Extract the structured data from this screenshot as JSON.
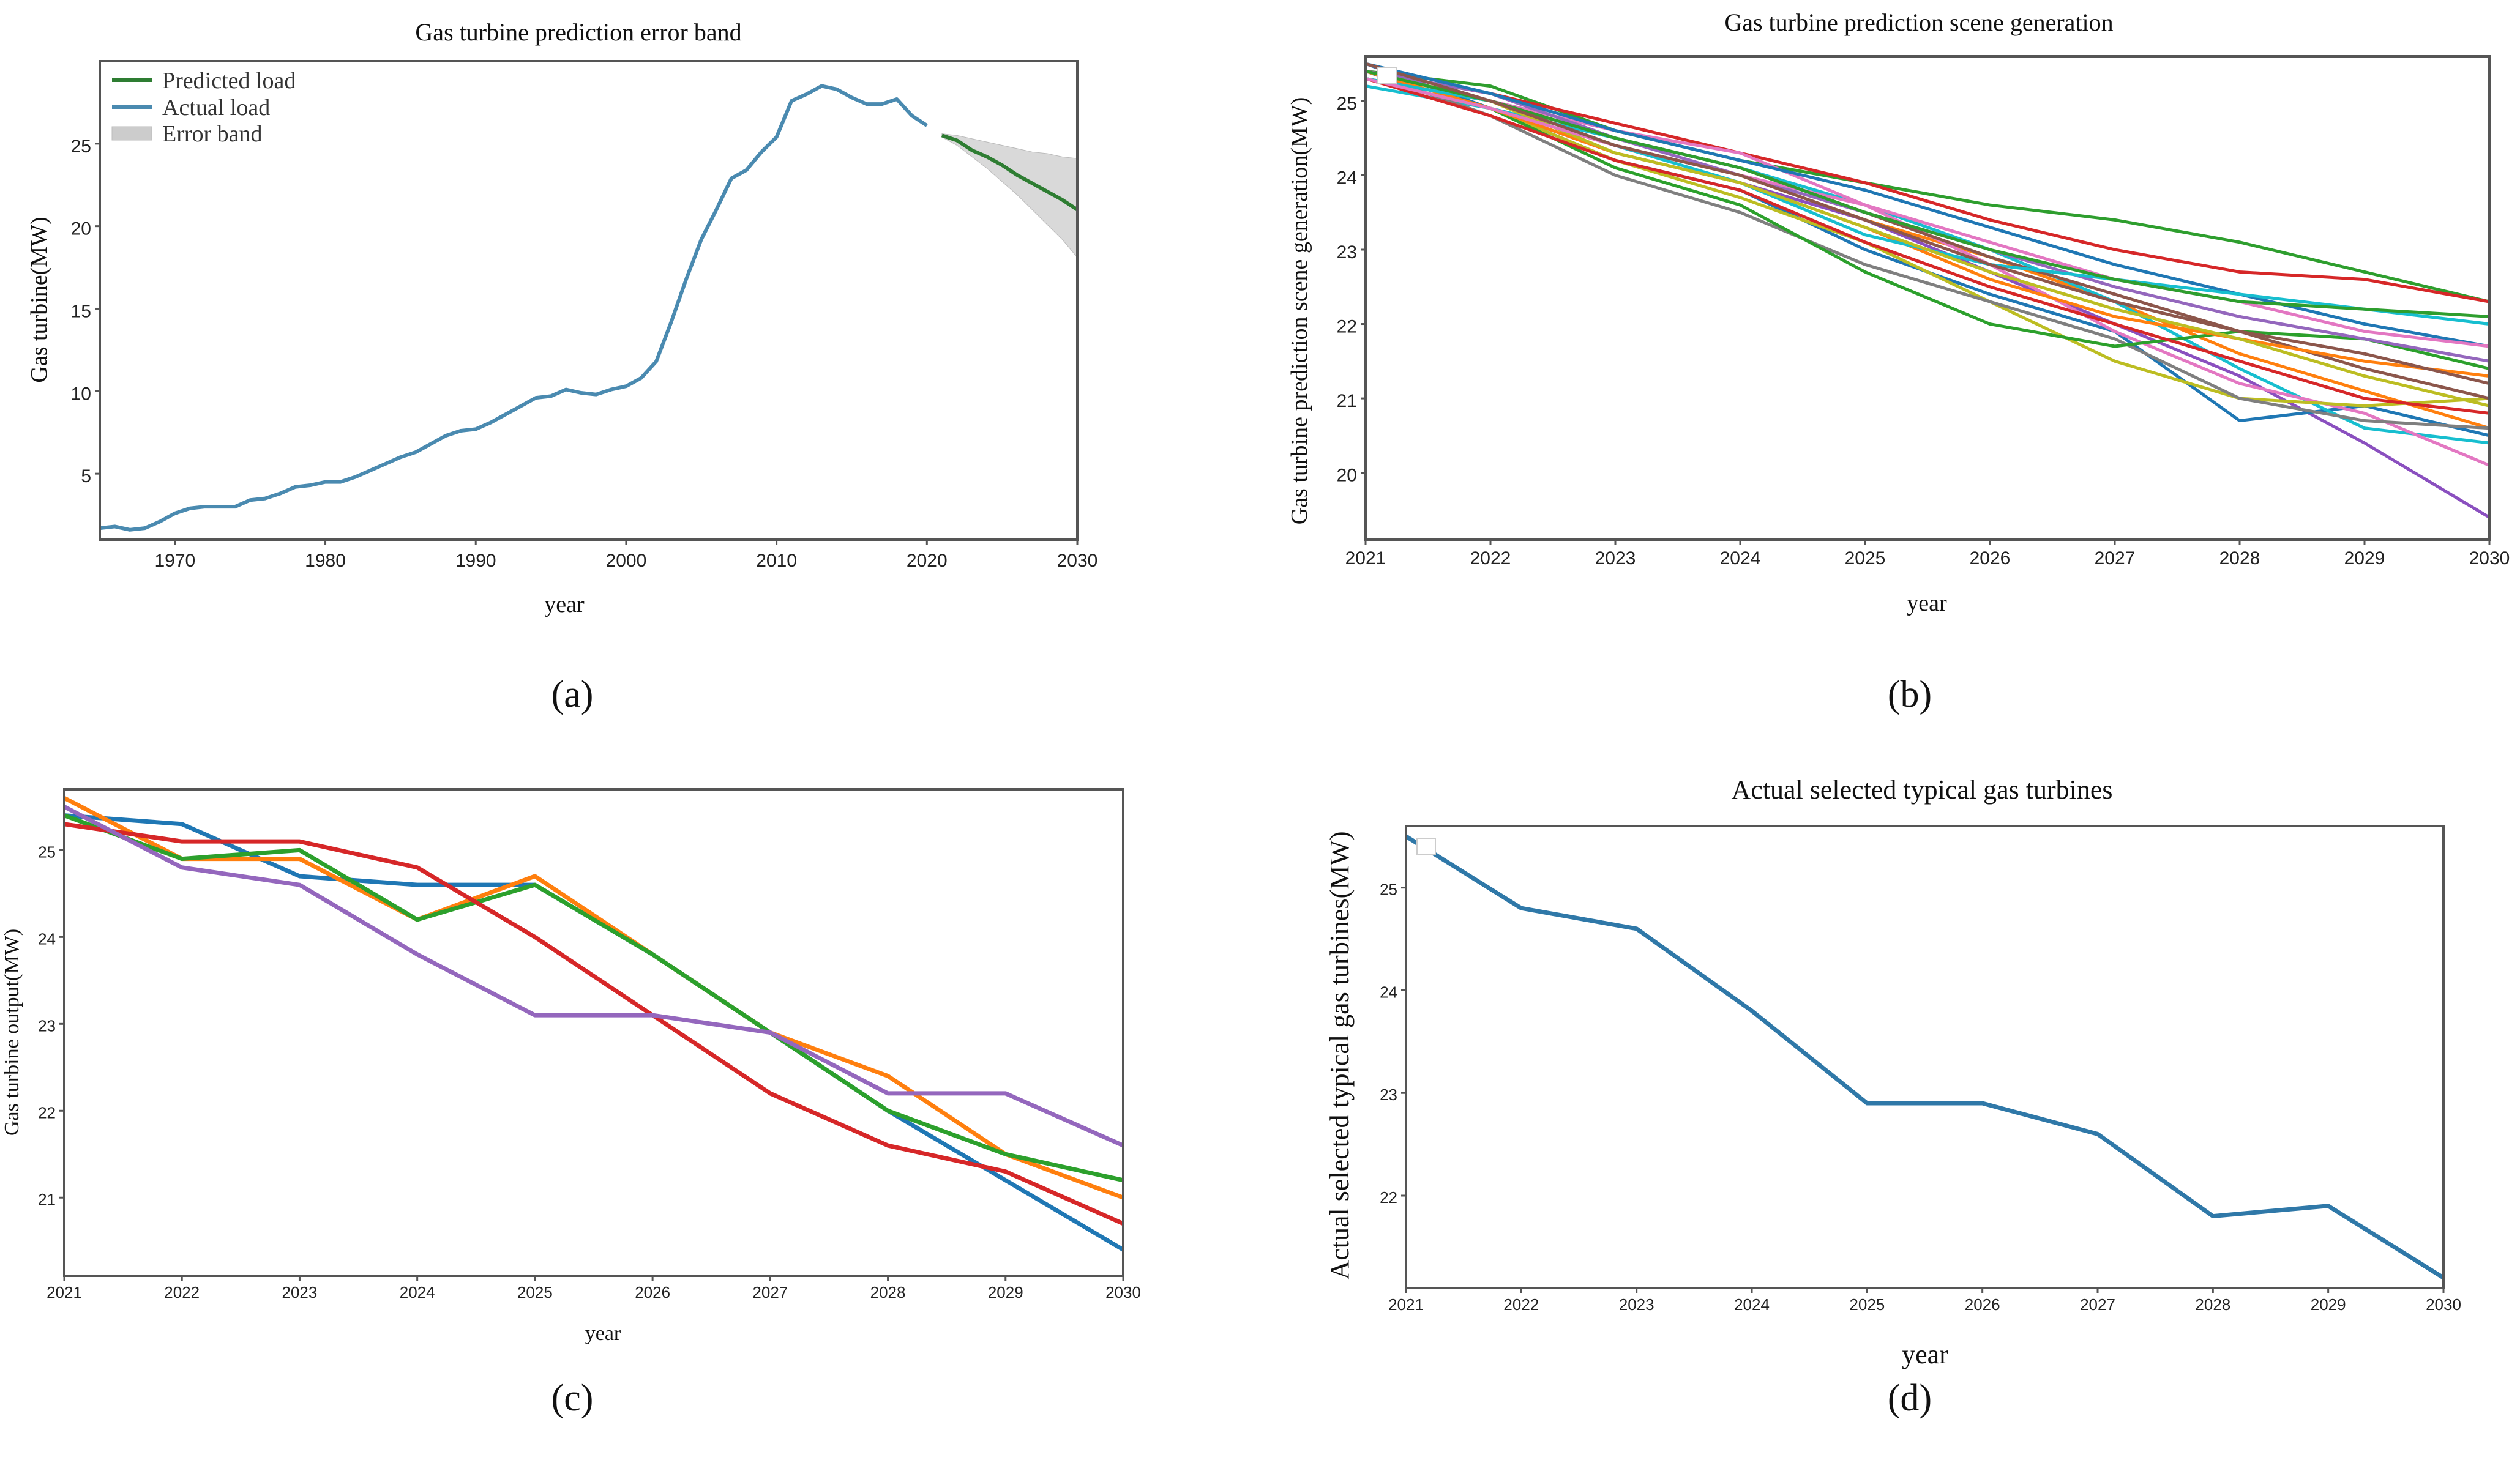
{
  "colors": {
    "predicted": "#2e7d32",
    "actual": "#4a8ab0",
    "band": "#cccccc",
    "d_line": "#2f78a8"
  },
  "panels": {
    "a": {
      "caption": "(a)"
    },
    "b": {
      "caption": "(b)"
    },
    "c": {
      "caption": "(c)"
    },
    "d": {
      "caption": "(d)"
    }
  },
  "chart_data": [
    {
      "id": "a",
      "type": "line",
      "title": "Gas turbine prediction error band",
      "xlabel": "year",
      "ylabel": "Gas turbine(MW)",
      "xlim": [
        1965,
        2030
      ],
      "ylim": [
        1,
        30
      ],
      "xticks": [
        1970,
        1980,
        1990,
        2000,
        2010,
        2020,
        2030
      ],
      "yticks": [
        5,
        10,
        15,
        20,
        25
      ],
      "legend": {
        "position": "top-left",
        "entries": [
          "Predicted load",
          "Actual load",
          "Error band"
        ]
      },
      "series": [
        {
          "name": "Actual load",
          "color": "#4a8ab0",
          "x": [
            1965,
            1966,
            1967,
            1968,
            1969,
            1970,
            1971,
            1972,
            1973,
            1974,
            1975,
            1976,
            1977,
            1978,
            1979,
            1980,
            1981,
            1982,
            1983,
            1984,
            1985,
            1986,
            1987,
            1988,
            1989,
            1990,
            1991,
            1992,
            1993,
            1994,
            1995,
            1996,
            1997,
            1998,
            1999,
            2000,
            2001,
            2002,
            2003,
            2004,
            2005,
            2006,
            2007,
            2008,
            2009,
            2010,
            2011,
            2012,
            2013,
            2014,
            2015,
            2016,
            2017,
            2018,
            2019,
            2020
          ],
          "y": [
            1.7,
            1.8,
            1.6,
            1.7,
            2.1,
            2.6,
            2.9,
            3.0,
            3.0,
            3.0,
            3.4,
            3.5,
            3.8,
            4.2,
            4.3,
            4.5,
            4.5,
            4.8,
            5.2,
            5.6,
            6.0,
            6.3,
            6.8,
            7.3,
            7.6,
            7.7,
            8.1,
            8.6,
            9.1,
            9.6,
            9.7,
            10.1,
            9.9,
            9.8,
            10.1,
            10.3,
            10.8,
            11.8,
            14.2,
            16.8,
            19.2,
            21.0,
            22.9,
            23.4,
            24.5,
            25.4,
            27.6,
            28.0,
            28.5,
            28.3,
            27.8,
            27.4,
            27.4,
            27.7,
            26.7,
            26.1
          ]
        },
        {
          "name": "Predicted load",
          "color": "#2e7d32",
          "x": [
            2021,
            2022,
            2023,
            2024,
            2025,
            2026,
            2027,
            2028,
            2029,
            2030
          ],
          "y": [
            25.5,
            25.2,
            24.6,
            24.2,
            23.7,
            23.1,
            22.6,
            22.1,
            21.6,
            21.0
          ]
        },
        {
          "name": "Error band",
          "type": "band",
          "color": "#cccccc",
          "x": [
            2021,
            2022,
            2023,
            2024,
            2025,
            2026,
            2027,
            2028,
            2029,
            2030
          ],
          "lower": [
            25.4,
            24.9,
            24.2,
            23.5,
            22.7,
            21.9,
            21.0,
            20.1,
            19.2,
            18.1
          ],
          "upper": [
            25.6,
            25.5,
            25.3,
            25.1,
            24.9,
            24.7,
            24.5,
            24.4,
            24.2,
            24.1
          ]
        }
      ]
    },
    {
      "id": "b",
      "type": "line",
      "title": "Gas turbine prediction scene generation",
      "xlabel": "year",
      "ylabel": "Gas turbine prediction scene generation(MW)",
      "xlim": [
        2021,
        2030
      ],
      "ylim": [
        19.1,
        25.6
      ],
      "xticks": [
        2021,
        2022,
        2023,
        2024,
        2025,
        2026,
        2027,
        2028,
        2029,
        2030
      ],
      "yticks": [
        20,
        21,
        22,
        23,
        24,
        25
      ],
      "x": [
        2021,
        2022,
        2023,
        2024,
        2025,
        2026,
        2027,
        2028,
        2029,
        2030
      ],
      "series": [
        {
          "color": "#2e9e2e",
          "values": [
            25.4,
            25.2,
            24.6,
            24.2,
            23.9,
            23.6,
            23.4,
            23.1,
            22.7,
            22.3
          ]
        },
        {
          "color": "#8a4fbf",
          "values": [
            25.3,
            24.9,
            24.3,
            23.9,
            23.4,
            22.7,
            22.0,
            21.3,
            20.4,
            19.4
          ]
        },
        {
          "color": "#d62728",
          "values": [
            25.4,
            25.1,
            24.7,
            24.3,
            23.9,
            23.4,
            23.0,
            22.7,
            22.6,
            22.3
          ]
        },
        {
          "color": "#1f77b4",
          "values": [
            25.5,
            24.9,
            24.2,
            23.8,
            23.0,
            22.4,
            21.9,
            20.7,
            20.9,
            20.5
          ]
        },
        {
          "color": "#ff7f0e",
          "values": [
            25.4,
            25.0,
            24.4,
            24.0,
            23.4,
            22.9,
            22.3,
            21.6,
            21.1,
            20.6
          ]
        },
        {
          "color": "#17becf",
          "values": [
            25.2,
            24.9,
            24.5,
            24.1,
            23.6,
            23.0,
            22.3,
            21.4,
            20.6,
            20.4
          ]
        },
        {
          "color": "#e377c2",
          "values": [
            25.5,
            25.0,
            24.6,
            24.3,
            23.6,
            22.8,
            21.9,
            21.2,
            20.8,
            20.1
          ]
        },
        {
          "color": "#bcbd22",
          "values": [
            25.3,
            24.9,
            24.2,
            23.7,
            23.1,
            22.3,
            21.5,
            21.0,
            20.9,
            21.0
          ]
        },
        {
          "color": "#7f7f7f",
          "values": [
            25.4,
            24.8,
            24.0,
            23.5,
            22.8,
            22.3,
            21.8,
            21.0,
            20.7,
            20.6
          ]
        },
        {
          "color": "#8c564b",
          "values": [
            25.3,
            25.0,
            24.5,
            24.1,
            23.5,
            22.9,
            22.4,
            21.9,
            21.4,
            21.0
          ]
        },
        {
          "color": "#2ca02c",
          "values": [
            25.4,
            24.9,
            24.1,
            23.6,
            22.7,
            22.0,
            21.7,
            21.9,
            21.8,
            21.4
          ]
        },
        {
          "color": "#9467bd",
          "values": [
            25.4,
            25.1,
            24.5,
            24.0,
            23.5,
            23.0,
            22.5,
            22.1,
            21.8,
            21.5
          ]
        },
        {
          "color": "#d62728",
          "values": [
            25.3,
            24.8,
            24.2,
            23.8,
            23.1,
            22.5,
            22.0,
            21.5,
            21.0,
            20.8
          ]
        },
        {
          "color": "#1f77b4",
          "values": [
            25.5,
            25.1,
            24.6,
            24.2,
            23.8,
            23.3,
            22.8,
            22.4,
            22.0,
            21.7
          ]
        },
        {
          "color": "#ff7f0e",
          "values": [
            25.4,
            24.9,
            24.3,
            23.9,
            23.3,
            22.6,
            22.1,
            21.8,
            21.5,
            21.3
          ]
        },
        {
          "color": "#17becf",
          "values": [
            25.3,
            25.0,
            24.4,
            23.9,
            23.2,
            22.8,
            22.6,
            22.4,
            22.2,
            22.0
          ]
        },
        {
          "color": "#bcbd22",
          "values": [
            25.4,
            25.0,
            24.3,
            23.9,
            23.3,
            22.7,
            22.2,
            21.8,
            21.3,
            20.9
          ]
        },
        {
          "color": "#e377c2",
          "values": [
            25.3,
            24.9,
            24.4,
            24.0,
            23.6,
            23.1,
            22.6,
            22.3,
            21.9,
            21.7
          ]
        },
        {
          "color": "#2e9e2e",
          "values": [
            25.4,
            25.0,
            24.5,
            24.1,
            23.5,
            23.0,
            22.6,
            22.3,
            22.2,
            22.1
          ]
        },
        {
          "color": "#8c564b",
          "values": [
            25.5,
            25.0,
            24.4,
            24.0,
            23.4,
            22.8,
            22.3,
            21.9,
            21.6,
            21.2
          ]
        }
      ]
    },
    {
      "id": "c",
      "type": "line",
      "title": "",
      "xlabel": "year",
      "ylabel": "Gas turbine output(MW)",
      "xlim": [
        2021,
        2030
      ],
      "ylim": [
        20.1,
        25.7
      ],
      "xticks": [
        2021,
        2022,
        2023,
        2024,
        2025,
        2026,
        2027,
        2028,
        2029,
        2030
      ],
      "yticks": [
        21,
        22,
        23,
        24,
        25
      ],
      "x": [
        2021,
        2022,
        2023,
        2024,
        2025,
        2026,
        2027,
        2028,
        2029,
        2030
      ],
      "series": [
        {
          "color": "#1f77b4",
          "values": [
            25.4,
            25.3,
            24.7,
            24.6,
            24.6,
            23.8,
            22.9,
            22.0,
            21.2,
            20.4
          ]
        },
        {
          "color": "#ff7f0e",
          "values": [
            25.6,
            24.9,
            24.9,
            24.2,
            24.7,
            23.8,
            22.9,
            22.4,
            21.5,
            21.0
          ]
        },
        {
          "color": "#2ca02c",
          "values": [
            25.4,
            24.9,
            25.0,
            24.2,
            24.6,
            23.8,
            22.9,
            22.0,
            21.5,
            21.2
          ]
        },
        {
          "color": "#d62728",
          "values": [
            25.3,
            25.1,
            25.1,
            24.8,
            24.0,
            23.1,
            22.2,
            21.6,
            21.3,
            20.7
          ]
        },
        {
          "color": "#9467bd",
          "values": [
            25.5,
            24.8,
            24.6,
            23.8,
            23.1,
            23.1,
            22.9,
            22.2,
            22.2,
            21.6
          ]
        }
      ]
    },
    {
      "id": "d",
      "type": "line",
      "title": "Actual selected typical gas turbines",
      "xlabel": "year",
      "ylabel": "Actual selected typical gas turbines(MW)",
      "xlim": [
        2021,
        2030
      ],
      "ylim": [
        21.1,
        25.6
      ],
      "xticks": [
        2021,
        2022,
        2023,
        2024,
        2025,
        2026,
        2027,
        2028,
        2029,
        2030
      ],
      "yticks": [
        22,
        23,
        24,
        25
      ],
      "x": [
        2021,
        2022,
        2023,
        2024,
        2025,
        2026,
        2027,
        2028,
        2029,
        2030
      ],
      "series": [
        {
          "color": "#2f78a8",
          "values": [
            25.5,
            24.8,
            24.6,
            23.8,
            22.9,
            22.9,
            22.6,
            21.8,
            21.9,
            21.2
          ]
        }
      ]
    }
  ]
}
